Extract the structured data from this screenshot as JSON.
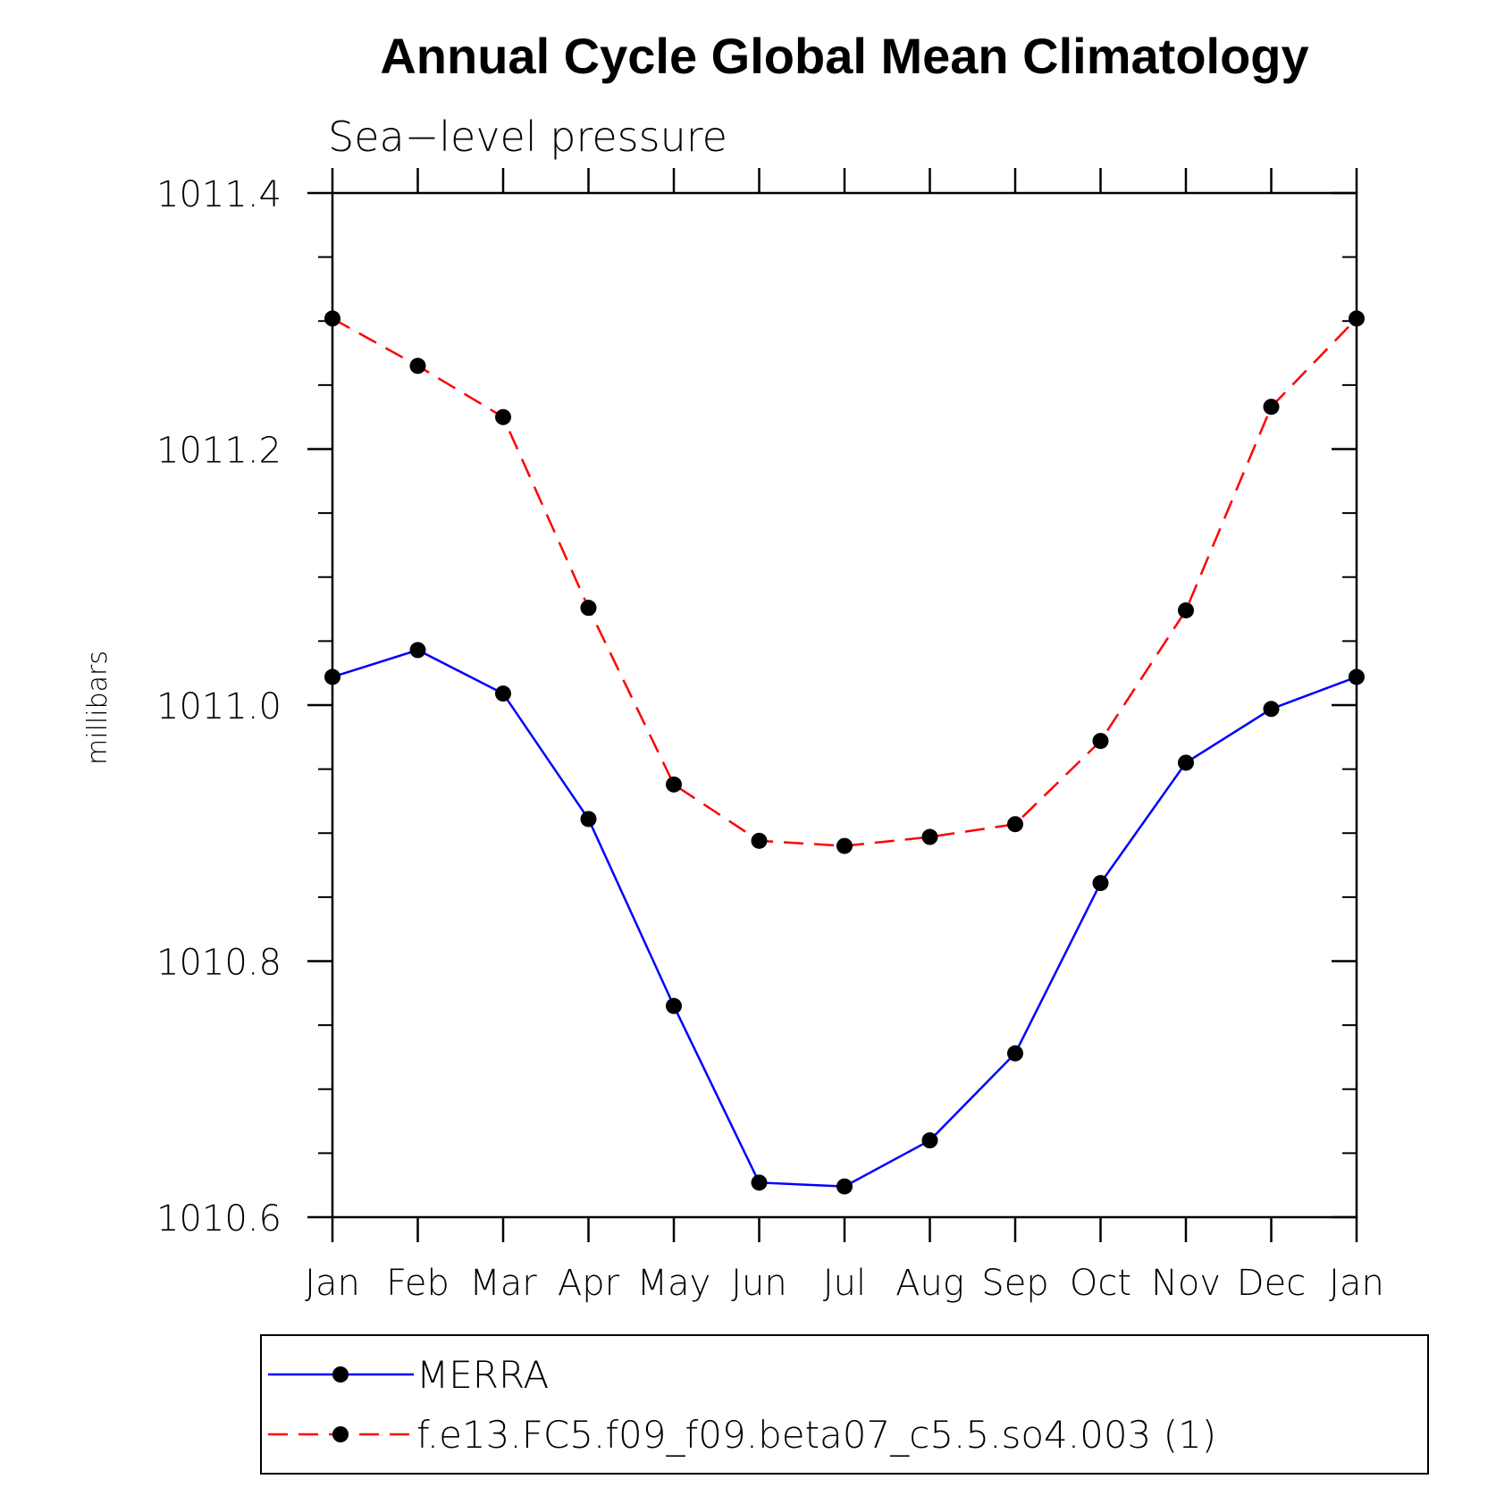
{
  "chart_data": {
    "type": "line",
    "title": "Annual Cycle Global Mean Climatology",
    "subtitle": "Sea−level pressure",
    "ylabel": "millibars",
    "xlabel": "",
    "categories": [
      "Jan",
      "Feb",
      "Mar",
      "Apr",
      "May",
      "Jun",
      "Jul",
      "Aug",
      "Sep",
      "Oct",
      "Nov",
      "Dec",
      "Jan"
    ],
    "ylim": [
      1010.6,
      1011.4
    ],
    "yticks": [
      1010.6,
      1010.8,
      1011.0,
      1011.2,
      1011.4
    ],
    "ytick_labels": [
      "1010.6",
      "1010.8",
      "1011.0",
      "1011.2",
      "1011.4"
    ],
    "grid": false,
    "legend_position": "bottom",
    "series": [
      {
        "name": "MERRA",
        "color": "#0000ff",
        "line_style": "solid",
        "marker": "filled-circle",
        "values": [
          1011.022,
          1011.043,
          1011.009,
          1010.911,
          1010.765,
          1010.627,
          1010.624,
          1010.66,
          1010.728,
          1010.861,
          1010.955,
          1010.997,
          1011.022
        ]
      },
      {
        "name": "f.e13.FC5.f09_f09.beta07_c5.5.so4.003 (1)",
        "color": "#ff0000",
        "line_style": "dashed",
        "marker": "filled-circle",
        "values": [
          1011.302,
          1011.265,
          1011.225,
          1011.076,
          1010.938,
          1010.894,
          1010.89,
          1010.897,
          1010.907,
          1010.972,
          1011.074,
          1011.233,
          1011.302
        ]
      }
    ]
  }
}
